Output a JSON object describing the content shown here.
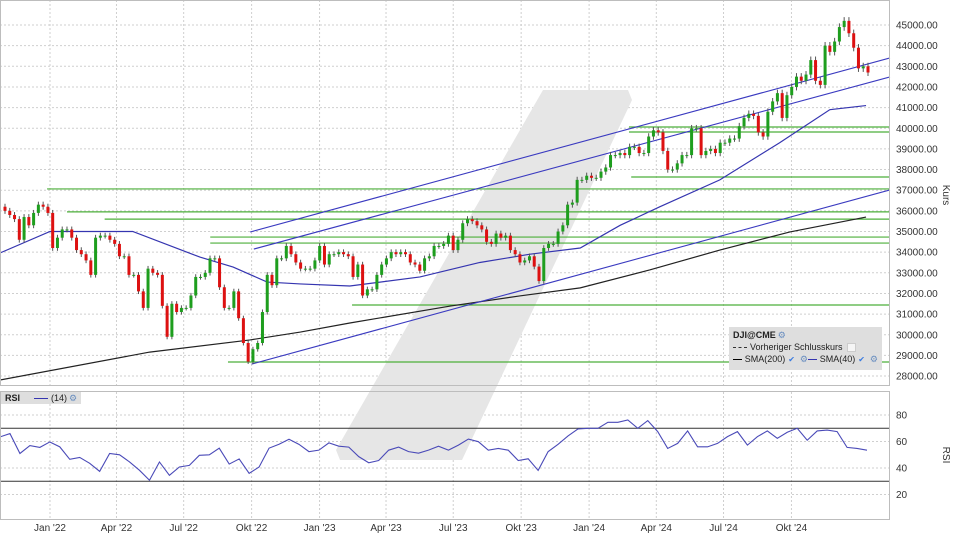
{
  "chart_data": [
    {
      "type": "candlestick",
      "symbol": "DJI@CME",
      "interval": "weekly",
      "ylabel": "Kurs",
      "ylim": [
        27800,
        45500
      ],
      "yticks": [
        "28000.00",
        "29000.00",
        "30000.00",
        "31000.00",
        "32000.00",
        "33000.00",
        "34000.00",
        "35000.00",
        "36000.00",
        "37000.00",
        "38000.00",
        "39000.00",
        "40000.00",
        "41000.00",
        "42000.00",
        "43000.00",
        "44000.00",
        "45000.00"
      ],
      "grid": true,
      "closes": [
        36000,
        35800,
        35600,
        34600,
        35700,
        35300,
        35900,
        36300,
        36200,
        35900,
        34200,
        34700,
        35100,
        35100,
        34700,
        34100,
        33900,
        33600,
        32900,
        34700,
        34800,
        34800,
        34600,
        34400,
        33800,
        33800,
        32900,
        32900,
        32100,
        31300,
        33200,
        33000,
        32900,
        31400,
        29900,
        31500,
        31100,
        31300,
        31300,
        31900,
        32800,
        32800,
        33000,
        33700,
        33700,
        32300,
        31300,
        31300,
        32100,
        30800,
        29600,
        28700,
        29300,
        29600,
        31100,
        32900,
        32400,
        33700,
        33700,
        34300,
        33900,
        33500,
        33200,
        33200,
        33200,
        33600,
        34300,
        33400,
        33900,
        33900,
        34000,
        33900,
        33800,
        32800,
        33400,
        31900,
        32200,
        32200,
        32900,
        33400,
        33700,
        34000,
        33900,
        34000,
        33900,
        33500,
        33400,
        33100,
        33700,
        33800,
        34300,
        34300,
        34400,
        34800,
        34100,
        34600,
        35400,
        35600,
        35500,
        35300,
        35100,
        34500,
        34400,
        34900,
        34700,
        34800,
        34100,
        33900,
        33500,
        33600,
        33800,
        33300,
        32600,
        34200,
        34400,
        34400,
        35000,
        35300,
        36300,
        36400,
        37500,
        37500,
        37700,
        37600,
        37600,
        37900,
        38100,
        38700,
        38700,
        38800,
        38700,
        39100,
        39100,
        38800,
        38800,
        39600,
        39900,
        39800,
        38900,
        38000,
        38000,
        38300,
        38700,
        38700,
        40000,
        40000,
        38700,
        38900,
        39000,
        38800,
        39300,
        39300,
        39500,
        39500,
        40100,
        40500,
        40700,
        40600,
        39800,
        39600,
        40800,
        41300,
        41700,
        40500,
        41600,
        42000,
        42500,
        42300,
        42600,
        43300,
        42300,
        42100,
        44000,
        43700,
        44200,
        44900,
        45200,
        44600,
        43900,
        42900,
        43000,
        42700
      ],
      "first_open": 36200,
      "colors": {
        "up": "#1e9e1e",
        "down": "#dd1111",
        "sma200": "#222222",
        "sma40": "#3535b0",
        "trendline": "#3a3ac0",
        "level": "#4caf3a"
      },
      "legend": {
        "title": "DJI@CME",
        "items": [
          "Vorheriger Schlusskurs",
          "SMA(200)",
          "SMA(40)"
        ],
        "placement": "bottom-right"
      },
      "sma200": [
        [
          "2021-10-25",
          27810
        ],
        [
          "2022-05-16",
          29160
        ],
        [
          "2022-09-29",
          29750
        ],
        [
          "2022-12-06",
          30130
        ],
        [
          "2023-02-11",
          30570
        ],
        [
          "2023-06-27",
          31390
        ],
        [
          "2023-09-29",
          31880
        ],
        [
          "2023-12-20",
          32270
        ],
        [
          "2024-03-23",
          33140
        ],
        [
          "2024-06-26",
          34100
        ],
        [
          "2024-09-29",
          34980
        ],
        [
          "2025-01-10",
          35700
        ]
      ],
      "sma40": [
        [
          "2021-10-25",
          33960
        ],
        [
          "2022-01-01",
          35000
        ],
        [
          "2022-04-23",
          35000
        ],
        [
          "2022-07-23",
          33760
        ],
        [
          "2022-09-06",
          33280
        ],
        [
          "2022-10-22",
          32550
        ],
        [
          "2022-12-06",
          32460
        ],
        [
          "2023-02-11",
          32360
        ],
        [
          "2023-05-17",
          32800
        ],
        [
          "2023-08-06",
          33500
        ],
        [
          "2023-10-13",
          33900
        ],
        [
          "2023-12-20",
          34200
        ],
        [
          "2024-02-12",
          35300
        ],
        [
          "2024-04-06",
          36200
        ],
        [
          "2024-06-26",
          37500
        ],
        [
          "2024-09-15",
          39300
        ],
        [
          "2024-11-22",
          40900
        ],
        [
          "2025-01-10",
          41100
        ]
      ],
      "trendlines": [
        {
          "from": [
            "2022-09-29",
            34976
          ],
          "to": [
            "2025-02-11",
            43400
          ]
        },
        {
          "from": [
            "2022-10-04",
            34150
          ],
          "to": [
            "2025-02-11",
            42480
          ]
        },
        {
          "from": [
            "2022-10-01",
            28580
          ],
          "to": [
            "2025-02-11",
            37010
          ]
        }
      ],
      "levels": [
        {
          "price": 40060,
          "from": "2024-02-24"
        },
        {
          "price": 39820,
          "from": "2024-02-24"
        },
        {
          "price": 37640,
          "from": "2024-02-27"
        },
        {
          "price": 37060,
          "from": "2021-12-28"
        },
        {
          "price": 35950,
          "from": "2022-01-24"
        },
        {
          "price": 35600,
          "from": "2022-03-16"
        },
        {
          "price": 34730,
          "from": "2022-08-06"
        },
        {
          "price": 34440,
          "from": "2022-08-06"
        },
        {
          "price": 31440,
          "from": "2023-02-14"
        },
        {
          "price": 28680,
          "from": "2022-08-30"
        }
      ],
      "xticks": [
        [
          "2022-01-01",
          "Jan '22"
        ],
        [
          "2022-04-01",
          "Apr '22"
        ],
        [
          "2022-07-01",
          "Jul '22"
        ],
        [
          "2022-10-01",
          "Okt '22"
        ],
        [
          "2023-01-01",
          "Jan '23"
        ],
        [
          "2023-04-01",
          "Apr '23"
        ],
        [
          "2023-07-01",
          "Jul '23"
        ],
        [
          "2023-10-01",
          "Okt '23"
        ],
        [
          "2024-01-01",
          "Jan '24"
        ],
        [
          "2024-04-01",
          "Apr '24"
        ],
        [
          "2024-07-01",
          "Jul '24"
        ],
        [
          "2024-10-01",
          "Okt '24"
        ]
      ]
    },
    {
      "type": "line",
      "title": "RSI",
      "series_label": "(14)",
      "ylabel": "RSI",
      "ylim": [
        10,
        90
      ],
      "yticks": [
        "20",
        "40",
        "60",
        "80"
      ],
      "bands": [
        30,
        70
      ],
      "values": [
        63.5,
        66,
        51,
        57,
        55.6,
        59.7,
        56,
        46.6,
        48,
        43.6,
        37.5,
        51,
        50,
        44.6,
        38.3,
        30.8,
        44.6,
        34.5,
        40.8,
        42,
        49.6,
        50,
        55,
        43,
        46.9,
        36,
        40.8,
        55,
        58,
        61.7,
        57.9,
        52.4,
        53.5,
        59,
        56.5,
        55.8,
        48.6,
        44,
        45.7,
        53.5,
        55.8,
        52.4,
        51.2,
        53.5,
        56.5,
        53.5,
        57.3,
        61.9,
        59.9,
        53.5,
        54.8,
        53.5,
        45.7,
        47,
        38.2,
        52.4,
        57.9,
        64.2,
        69.5,
        70,
        70,
        74.5,
        74.5,
        76.3,
        70,
        75.8,
        67.5,
        54.8,
        58.6,
        68,
        56,
        56,
        58.6,
        63.7,
        67.5,
        57.3,
        63.7,
        68,
        62.4,
        67,
        70,
        61,
        68,
        68.7,
        67.5,
        55.6,
        54.8,
        53.5
      ]
    }
  ]
}
